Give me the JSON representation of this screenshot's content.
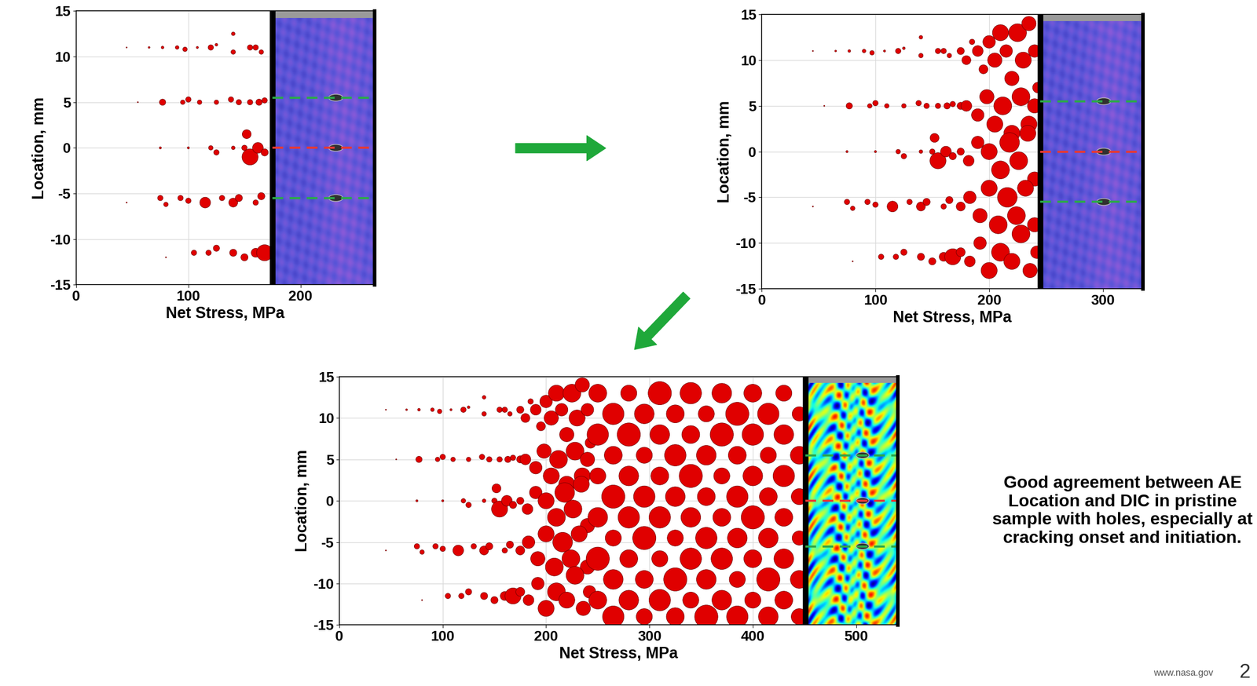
{
  "chart_data": [
    {
      "type": "scatter",
      "xlabel": "Net Stress, MPa",
      "ylabel": "Location, mm",
      "xlim": [
        0,
        266
      ],
      "ylim": [
        -15,
        15
      ],
      "xticks": [
        0,
        100,
        200
      ],
      "yticks": [
        -15,
        -10,
        -5,
        0,
        5,
        10,
        15
      ],
      "grid": true,
      "color": "#e00000",
      "current_net_stress": 175,
      "reference_lines": [
        {
          "value": 5.5,
          "color": "#2ca84a",
          "line_style": "dashed"
        },
        {
          "value": 0,
          "color": "#e53935",
          "line_style": "dashed"
        },
        {
          "value": -5.5,
          "color": "#2ca84a",
          "line_style": "dashed"
        }
      ],
      "x": [
        45,
        65,
        77,
        90,
        97,
        108,
        120,
        125,
        140,
        140,
        155,
        160,
        165,
        55,
        77,
        95,
        100,
        110,
        125,
        138,
        145,
        155,
        163,
        168,
        75,
        100,
        120,
        125,
        140,
        150,
        155,
        152,
        162,
        168,
        45,
        75,
        80,
        93,
        100,
        115,
        130,
        140,
        145,
        160,
        165,
        80,
        105,
        118,
        125,
        140,
        150,
        160,
        168
      ],
      "y": [
        11,
        11,
        11,
        11,
        10.8,
        11,
        11,
        11.3,
        12.5,
        10.5,
        11,
        11,
        10.5,
        5,
        5,
        5,
        5.3,
        5,
        5,
        5.3,
        5,
        5,
        5,
        5.2,
        0,
        0,
        0,
        -0.5,
        0,
        0,
        -1,
        1.5,
        0,
        -0.5,
        -6,
        -5.5,
        -6.2,
        -5.5,
        -5.8,
        -6,
        -5.5,
        -6,
        -5.5,
        -6,
        -5.3,
        -12,
        -11.5,
        -11.5,
        -11,
        -11.5,
        -12,
        -11.5,
        -11.5
      ],
      "size": [
        0.6,
        1,
        1.5,
        2,
        2.5,
        1.2,
        3,
        1.5,
        2,
        2.5,
        3,
        3,
        2.5,
        0.6,
        3.5,
        2.5,
        3,
        2.5,
        2.5,
        3,
        3,
        3,
        3.5,
        3,
        1.2,
        1.2,
        2.5,
        3,
        2,
        3,
        9,
        5,
        6,
        4,
        0.6,
        3,
        2.5,
        3,
        3,
        6,
        3,
        5,
        4,
        3,
        4,
        0.6,
        3,
        3,
        3.5,
        4,
        4,
        5,
        9
      ]
    },
    {
      "type": "scatter",
      "xlabel": "Net Stress, MPa",
      "ylabel": "Location, mm",
      "xlim": [
        0,
        335
      ],
      "ylim": [
        -15,
        15
      ],
      "xticks": [
        0,
        100,
        200,
        300
      ],
      "yticks": [
        -15,
        -10,
        -5,
        0,
        5,
        10,
        15
      ],
      "grid": true,
      "color": "#e00000",
      "current_net_stress": 245,
      "reference_lines": [
        {
          "value": 5.5,
          "color": "#2ca84a",
          "line_style": "dashed"
        },
        {
          "value": 0,
          "color": "#e53935",
          "line_style": "dashed"
        },
        {
          "value": -5.5,
          "color": "#2ca84a",
          "line_style": "dashed"
        }
      ],
      "x": [
        45,
        65,
        77,
        90,
        97,
        108,
        120,
        125,
        140,
        140,
        155,
        160,
        165,
        55,
        77,
        95,
        100,
        110,
        125,
        138,
        145,
        155,
        163,
        168,
        75,
        100,
        120,
        125,
        140,
        150,
        155,
        152,
        162,
        168,
        45,
        75,
        80,
        93,
        100,
        115,
        130,
        140,
        145,
        160,
        165,
        80,
        105,
        118,
        125,
        140,
        150,
        160,
        168,
        175,
        180,
        185,
        190,
        195,
        200,
        205,
        210,
        215,
        220,
        225,
        230,
        235,
        240,
        243,
        175,
        180,
        190,
        198,
        205,
        212,
        220,
        228,
        235,
        240,
        175,
        182,
        190,
        200,
        210,
        218,
        226,
        234,
        240,
        175,
        183,
        192,
        200,
        208,
        216,
        224,
        232,
        240,
        175,
        183,
        192,
        200,
        210,
        220,
        228,
        236,
        242
      ],
      "y": [
        11,
        11,
        11,
        11,
        10.8,
        11,
        11,
        11.3,
        12.5,
        10.5,
        11,
        11,
        10.5,
        5,
        5,
        5,
        5.3,
        5,
        5,
        5.3,
        5,
        5,
        5,
        5.2,
        0,
        0,
        0,
        -0.5,
        0,
        0,
        -1,
        1.5,
        0,
        -0.5,
        -6,
        -5.5,
        -6.2,
        -5.5,
        -5.8,
        -6,
        -5.5,
        -6,
        -5.5,
        -6,
        -5.3,
        -12,
        -11.5,
        -11.5,
        -11,
        -11.5,
        -12,
        -11.5,
        -11.5,
        11,
        10,
        12,
        11,
        9,
        12,
        10,
        13,
        11,
        8,
        13,
        10,
        14,
        11,
        7,
        5,
        5,
        4,
        6,
        3,
        5,
        2,
        6,
        3,
        5,
        0,
        -1,
        1,
        0,
        -2,
        1,
        -1,
        2,
        -3,
        -6,
        -5,
        -7,
        -4,
        -8,
        -5,
        -7,
        -4,
        -8,
        -11,
        -12,
        -10,
        -13,
        -11,
        -12,
        -9,
        -13,
        -11
      ],
      "size": [
        0.6,
        1,
        1.5,
        2,
        2.5,
        1.2,
        3,
        1.5,
        2,
        2.5,
        3,
        3,
        2.5,
        0.6,
        3.5,
        2.5,
        3,
        2.5,
        2.5,
        3,
        3,
        3,
        3.5,
        3,
        1.2,
        1.2,
        2.5,
        3,
        2,
        3,
        9,
        5,
        6,
        4,
        0.6,
        3,
        2.5,
        3,
        3,
        6,
        3,
        5,
        4,
        3,
        4,
        0.6,
        3,
        3,
        3.5,
        4,
        4,
        5,
        9,
        4,
        5,
        3,
        6,
        5,
        7,
        8,
        9,
        7,
        8,
        10,
        9,
        8,
        7,
        6,
        4,
        6,
        7,
        8,
        9,
        10,
        9,
        10,
        9,
        8,
        4,
        6,
        7,
        9,
        10,
        11,
        10,
        9,
        8,
        5,
        7,
        8,
        9,
        10,
        11,
        10,
        9,
        8,
        5,
        6,
        7,
        9,
        10,
        9,
        10,
        8,
        7
      ]
    },
    {
      "type": "scatter",
      "xlabel": "Net Stress, MPa",
      "ylabel": "Location, mm",
      "xlim": [
        0,
        540
      ],
      "ylim": [
        -15,
        15
      ],
      "xticks": [
        0,
        100,
        200,
        300,
        400,
        500
      ],
      "yticks": [
        -15,
        -10,
        -5,
        0,
        5,
        10,
        15
      ],
      "grid": true,
      "color": "#e00000",
      "current_net_stress": 451,
      "reference_lines": [
        {
          "value": 5.5,
          "color": "#2ca84a",
          "line_style": "dashed"
        },
        {
          "value": 0,
          "color": "#e53935",
          "line_style": "dashed"
        },
        {
          "value": -5.5,
          "color": "#2ca84a",
          "line_style": "dashed"
        }
      ],
      "x": [
        45,
        65,
        77,
        90,
        97,
        108,
        120,
        125,
        140,
        140,
        155,
        160,
        165,
        55,
        77,
        95,
        100,
        110,
        125,
        138,
        145,
        155,
        163,
        168,
        75,
        100,
        120,
        125,
        140,
        150,
        155,
        152,
        162,
        168,
        45,
        75,
        80,
        93,
        100,
        115,
        130,
        140,
        145,
        160,
        165,
        80,
        105,
        118,
        125,
        140,
        150,
        160,
        168,
        175,
        180,
        185,
        190,
        195,
        200,
        205,
        210,
        215,
        220,
        225,
        230,
        235,
        240,
        243,
        175,
        180,
        190,
        198,
        205,
        212,
        220,
        228,
        235,
        240,
        175,
        182,
        190,
        200,
        210,
        218,
        226,
        234,
        240,
        175,
        183,
        192,
        200,
        208,
        216,
        224,
        232,
        240,
        175,
        183,
        192,
        200,
        210,
        220,
        228,
        236,
        242,
        250,
        250,
        250,
        250,
        250,
        250,
        265,
        265,
        265,
        265,
        265,
        265,
        280,
        280,
        280,
        280,
        280,
        280,
        295,
        295,
        295,
        295,
        295,
        295,
        310,
        310,
        310,
        310,
        310,
        310,
        325,
        325,
        325,
        325,
        325,
        325,
        340,
        340,
        340,
        340,
        340,
        340,
        355,
        355,
        355,
        355,
        355,
        355,
        370,
        370,
        370,
        370,
        370,
        370,
        385,
        385,
        385,
        385,
        385,
        385,
        400,
        400,
        400,
        400,
        400,
        400,
        415,
        415,
        415,
        415,
        415,
        415,
        430,
        430,
        430,
        430,
        430,
        430,
        445,
        445,
        445,
        445,
        445,
        445
      ],
      "y": [
        11,
        11,
        11,
        11,
        10.8,
        11,
        11,
        11.3,
        12.5,
        10.5,
        11,
        11,
        10.5,
        5,
        5,
        5,
        5.3,
        5,
        5,
        5.3,
        5,
        5,
        5,
        5.2,
        0,
        0,
        0,
        -0.5,
        0,
        0,
        -1,
        1.5,
        0,
        -0.5,
        -6,
        -5.5,
        -6.2,
        -5.5,
        -5.8,
        -6,
        -5.5,
        -6,
        -5.5,
        -6,
        -5.3,
        -12,
        -11.5,
        -11.5,
        -11,
        -11.5,
        -12,
        -11.5,
        -11.5,
        11,
        10,
        12,
        11,
        9,
        12,
        10,
        13,
        11,
        8,
        13,
        10,
        14,
        11,
        7,
        5,
        5,
        4,
        6,
        3,
        5,
        2,
        6,
        3,
        5,
        0,
        -1,
        1,
        0,
        -2,
        1,
        -1,
        2,
        -3,
        -6,
        -5,
        -7,
        -4,
        -8,
        -5,
        -7,
        -4,
        -8,
        -11,
        -12,
        -10,
        -13,
        -11,
        -12,
        -9,
        -13,
        -11,
        13,
        8,
        3,
        -2,
        -7,
        -12,
        10.5,
        5.5,
        0.5,
        -4.5,
        -9.5,
        -14,
        13,
        8,
        3,
        -2,
        -7,
        -12,
        10.5,
        5.5,
        0.5,
        -4.5,
        -9.5,
        -14,
        13,
        8,
        3,
        -2,
        -7,
        -12,
        10.5,
        5.5,
        0.5,
        -4.5,
        -9.5,
        -14,
        13,
        8,
        3,
        -2,
        -7,
        -12,
        10.5,
        5.5,
        0.5,
        -4.5,
        -9.5,
        -14,
        13,
        8,
        3,
        -2,
        -7,
        -12,
        10.5,
        5.5,
        0.5,
        -4.5,
        -9.5,
        -14,
        13,
        8,
        3,
        -2,
        -7,
        -12,
        10.5,
        5.5,
        0.5,
        -4.5,
        -9.5,
        -14,
        13,
        8,
        3,
        -2,
        -7,
        -12,
        10.5,
        5.5,
        0.5,
        -4.5,
        -9.5,
        -14
      ],
      "size": [
        0.6,
        1,
        1.5,
        2,
        2.5,
        1.2,
        3,
        1.5,
        2,
        2.5,
        3,
        3,
        2.5,
        0.6,
        3.5,
        2.5,
        3,
        2.5,
        2.5,
        3,
        3,
        3,
        3.5,
        3,
        1.2,
        1.2,
        2.5,
        3,
        2,
        3,
        9,
        5,
        6,
        4,
        0.6,
        3,
        2.5,
        3,
        3,
        6,
        3,
        5,
        4,
        3,
        4,
        0.6,
        3,
        3,
        3.5,
        4,
        4,
        5,
        9,
        4,
        5,
        3,
        6,
        5,
        7,
        8,
        9,
        7,
        8,
        10,
        9,
        8,
        7,
        6,
        4,
        6,
        7,
        8,
        9,
        10,
        9,
        10,
        9,
        8,
        4,
        6,
        7,
        9,
        10,
        11,
        10,
        9,
        8,
        5,
        7,
        8,
        9,
        10,
        11,
        10,
        9,
        8,
        5,
        6,
        7,
        9,
        10,
        9,
        10,
        8,
        7,
        10,
        12,
        9,
        11,
        13,
        10,
        12,
        10,
        13,
        9,
        11,
        12,
        9,
        13,
        11,
        12,
        10,
        11,
        11,
        9,
        12,
        13,
        10,
        9,
        13,
        11,
        10,
        12,
        9,
        12,
        10,
        12,
        11,
        9,
        13,
        10,
        12,
        10,
        13,
        11,
        12,
        9,
        9,
        11,
        10,
        12,
        11,
        13,
        11,
        13,
        9,
        10,
        12,
        11,
        13,
        10,
        12,
        11,
        9,
        12,
        10,
        12,
        11,
        13,
        10,
        9,
        12,
        9,
        10,
        11,
        13,
        11,
        9,
        11,
        12,
        10,
        11,
        10,
        8,
        10,
        9,
        8,
        10,
        9
      ]
    }
  ],
  "note": "Good agreement between AE Location and DIC in pristine sample with holes, especially at cracking onset and initiation.",
  "footer": {
    "url": "www.nasa.gov",
    "page": "2"
  }
}
